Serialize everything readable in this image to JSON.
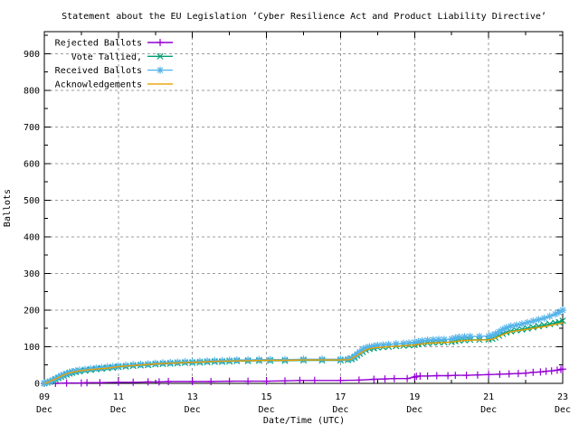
{
  "chart_data": {
    "type": "line",
    "title": "Statement about the EU Legislation ’Cyber Resilience Act and Product Liability Directive’",
    "xlabel": "Date/Time (UTC)",
    "ylabel": "Ballots",
    "xlim": [
      9,
      23
    ],
    "ylim": [
      0,
      960
    ],
    "grid": true,
    "grid_color": "#9c9c9c",
    "axis_color": "#000000",
    "legend_position": "top-left-inside",
    "yticks_major": [
      0,
      100,
      200,
      300,
      400,
      500,
      600,
      700,
      800,
      900
    ],
    "yticks_minor_step": 50,
    "xticks": [
      {
        "value": 9,
        "label_day": "09",
        "label_month": "Dec"
      },
      {
        "value": 11,
        "label_day": "11",
        "label_month": "Dec"
      },
      {
        "value": 13,
        "label_day": "13",
        "label_month": "Dec"
      },
      {
        "value": 15,
        "label_day": "15",
        "label_month": "Dec"
      },
      {
        "value": 17,
        "label_day": "17",
        "label_month": "Dec"
      },
      {
        "value": 19,
        "label_day": "19",
        "label_month": "Dec"
      },
      {
        "value": 21,
        "label_day": "21",
        "label_month": "Dec"
      },
      {
        "value": 23,
        "label_day": "23",
        "label_month": "Dec"
      }
    ],
    "xticks_minor": [
      10,
      12,
      14,
      16,
      18,
      20,
      22
    ],
    "series": [
      {
        "name": "Rejected Ballots",
        "color": "#9400d3",
        "marker": "plus",
        "points": [
          [
            9.0,
            0
          ],
          [
            9.3,
            0
          ],
          [
            9.6,
            1
          ],
          [
            10.0,
            1
          ],
          [
            10.15,
            2
          ],
          [
            10.5,
            2
          ],
          [
            11.0,
            3
          ],
          [
            11.4,
            3
          ],
          [
            11.8,
            4
          ],
          [
            12.1,
            4
          ],
          [
            12.35,
            5
          ],
          [
            13.0,
            5
          ],
          [
            13.5,
            5
          ],
          [
            14.0,
            6
          ],
          [
            14.5,
            6
          ],
          [
            15.0,
            6
          ],
          [
            15.5,
            7
          ],
          [
            15.9,
            8
          ],
          [
            16.3,
            8
          ],
          [
            17.0,
            8
          ],
          [
            17.5,
            9
          ],
          [
            17.9,
            11
          ],
          [
            18.2,
            12
          ],
          [
            18.45,
            13
          ],
          [
            18.8,
            13
          ],
          [
            19.0,
            17
          ],
          [
            19.05,
            19
          ],
          [
            19.15,
            20
          ],
          [
            19.35,
            20
          ],
          [
            19.6,
            21
          ],
          [
            19.9,
            21
          ],
          [
            20.1,
            22
          ],
          [
            20.4,
            22
          ],
          [
            20.7,
            23
          ],
          [
            21.0,
            24
          ],
          [
            21.3,
            25
          ],
          [
            21.55,
            26
          ],
          [
            21.8,
            27
          ],
          [
            22.0,
            28
          ],
          [
            22.2,
            30
          ],
          [
            22.4,
            31
          ],
          [
            22.55,
            33
          ],
          [
            22.7,
            34
          ],
          [
            22.85,
            36
          ],
          [
            22.95,
            38
          ],
          [
            23.0,
            39
          ]
        ]
      },
      {
        "name": "Vote Tallied,",
        "color": "#009e73",
        "marker": "cross",
        "points": [
          [
            9.0,
            0
          ],
          [
            9.08,
            2
          ],
          [
            9.15,
            4
          ],
          [
            9.22,
            7
          ],
          [
            9.3,
            10
          ],
          [
            9.38,
            14
          ],
          [
            9.45,
            18
          ],
          [
            9.52,
            21
          ],
          [
            9.6,
            24
          ],
          [
            9.68,
            27
          ],
          [
            9.75,
            29
          ],
          [
            9.85,
            31
          ],
          [
            9.95,
            33
          ],
          [
            10.1,
            35
          ],
          [
            10.25,
            37
          ],
          [
            10.4,
            39
          ],
          [
            10.55,
            40
          ],
          [
            10.7,
            42
          ],
          [
            10.85,
            43
          ],
          [
            11.0,
            45
          ],
          [
            11.2,
            46
          ],
          [
            11.4,
            48
          ],
          [
            11.6,
            49
          ],
          [
            11.8,
            50
          ],
          [
            12.0,
            52
          ],
          [
            12.2,
            53
          ],
          [
            12.4,
            54
          ],
          [
            12.6,
            55
          ],
          [
            12.8,
            56
          ],
          [
            13.0,
            56
          ],
          [
            13.2,
            57
          ],
          [
            13.4,
            58
          ],
          [
            13.6,
            59
          ],
          [
            13.8,
            59
          ],
          [
            14.0,
            60
          ],
          [
            14.2,
            61
          ],
          [
            14.5,
            61
          ],
          [
            14.8,
            62
          ],
          [
            15.1,
            62
          ],
          [
            15.5,
            62
          ],
          [
            16.0,
            63
          ],
          [
            16.5,
            63
          ],
          [
            17.0,
            63
          ],
          [
            17.2,
            64
          ],
          [
            17.3,
            66
          ],
          [
            17.38,
            70
          ],
          [
            17.45,
            76
          ],
          [
            17.52,
            81
          ],
          [
            17.6,
            86
          ],
          [
            17.68,
            91
          ],
          [
            17.78,
            94
          ],
          [
            17.9,
            96
          ],
          [
            18.0,
            98
          ],
          [
            18.15,
            99
          ],
          [
            18.3,
            100
          ],
          [
            18.5,
            102
          ],
          [
            18.7,
            103
          ],
          [
            18.85,
            104
          ],
          [
            19.0,
            105
          ],
          [
            19.1,
            107
          ],
          [
            19.2,
            109
          ],
          [
            19.35,
            110
          ],
          [
            19.5,
            111
          ],
          [
            19.65,
            112
          ],
          [
            19.8,
            112
          ],
          [
            20.0,
            113
          ],
          [
            20.1,
            115
          ],
          [
            20.2,
            117
          ],
          [
            20.35,
            118
          ],
          [
            20.5,
            119
          ],
          [
            20.75,
            119
          ],
          [
            21.0,
            120
          ],
          [
            21.1,
            122
          ],
          [
            21.18,
            125
          ],
          [
            21.28,
            130
          ],
          [
            21.38,
            135
          ],
          [
            21.48,
            139
          ],
          [
            21.6,
            142
          ],
          [
            21.75,
            145
          ],
          [
            21.9,
            147
          ],
          [
            22.05,
            150
          ],
          [
            22.2,
            153
          ],
          [
            22.35,
            156
          ],
          [
            22.5,
            159
          ],
          [
            22.65,
            162
          ],
          [
            22.8,
            165
          ],
          [
            22.9,
            167
          ],
          [
            23.0,
            171
          ]
        ]
      },
      {
        "name": "Received Ballots",
        "color": "#56b4e9",
        "marker": "asterisk",
        "points": [
          [
            9.0,
            1
          ],
          [
            9.08,
            3
          ],
          [
            9.15,
            6
          ],
          [
            9.22,
            9
          ],
          [
            9.3,
            13
          ],
          [
            9.38,
            17
          ],
          [
            9.45,
            21
          ],
          [
            9.52,
            24
          ],
          [
            9.6,
            27
          ],
          [
            9.68,
            30
          ],
          [
            9.75,
            32
          ],
          [
            9.85,
            34
          ],
          [
            9.95,
            36
          ],
          [
            10.1,
            38
          ],
          [
            10.25,
            40
          ],
          [
            10.4,
            42
          ],
          [
            10.55,
            43
          ],
          [
            10.7,
            45
          ],
          [
            10.85,
            46
          ],
          [
            11.0,
            48
          ],
          [
            11.2,
            49
          ],
          [
            11.4,
            51
          ],
          [
            11.6,
            52
          ],
          [
            11.8,
            53
          ],
          [
            12.0,
            55
          ],
          [
            12.2,
            56
          ],
          [
            12.4,
            57
          ],
          [
            12.6,
            58
          ],
          [
            12.8,
            59
          ],
          [
            13.0,
            59
          ],
          [
            13.2,
            60
          ],
          [
            13.4,
            61
          ],
          [
            13.6,
            62
          ],
          [
            13.8,
            62
          ],
          [
            14.0,
            63
          ],
          [
            14.2,
            64
          ],
          [
            14.5,
            64
          ],
          [
            14.8,
            65
          ],
          [
            15.1,
            65
          ],
          [
            15.5,
            65
          ],
          [
            16.0,
            66
          ],
          [
            16.5,
            66
          ],
          [
            17.0,
            66
          ],
          [
            17.2,
            67
          ],
          [
            17.3,
            69
          ],
          [
            17.38,
            74
          ],
          [
            17.45,
            80
          ],
          [
            17.52,
            86
          ],
          [
            17.6,
            92
          ],
          [
            17.68,
            97
          ],
          [
            17.78,
            100
          ],
          [
            17.9,
            102
          ],
          [
            18.0,
            104
          ],
          [
            18.15,
            105
          ],
          [
            18.3,
            106
          ],
          [
            18.5,
            108
          ],
          [
            18.7,
            109
          ],
          [
            18.85,
            110
          ],
          [
            19.0,
            112
          ],
          [
            19.1,
            114
          ],
          [
            19.2,
            116
          ],
          [
            19.35,
            118
          ],
          [
            19.5,
            119
          ],
          [
            19.65,
            120
          ],
          [
            19.8,
            120
          ],
          [
            20.0,
            121
          ],
          [
            20.1,
            124
          ],
          [
            20.2,
            126
          ],
          [
            20.35,
            127
          ],
          [
            20.5,
            128
          ],
          [
            20.75,
            128
          ],
          [
            21.0,
            129
          ],
          [
            21.1,
            131
          ],
          [
            21.18,
            135
          ],
          [
            21.28,
            141
          ],
          [
            21.38,
            147
          ],
          [
            21.48,
            152
          ],
          [
            21.6,
            156
          ],
          [
            21.75,
            159
          ],
          [
            21.9,
            162
          ],
          [
            22.05,
            166
          ],
          [
            22.2,
            170
          ],
          [
            22.35,
            174
          ],
          [
            22.5,
            178
          ],
          [
            22.65,
            183
          ],
          [
            22.8,
            189
          ],
          [
            22.9,
            194
          ],
          [
            23.0,
            200
          ]
        ]
      },
      {
        "name": "Acknowledgements",
        "color": "#e69f00",
        "marker": "none",
        "points": [
          [
            9.0,
            0
          ],
          [
            9.1,
            3
          ],
          [
            9.2,
            8
          ],
          [
            9.3,
            12
          ],
          [
            9.4,
            17
          ],
          [
            9.5,
            22
          ],
          [
            9.6,
            26
          ],
          [
            9.7,
            29
          ],
          [
            9.8,
            31
          ],
          [
            9.95,
            34
          ],
          [
            10.1,
            36
          ],
          [
            10.3,
            38
          ],
          [
            10.5,
            40
          ],
          [
            10.75,
            42
          ],
          [
            11.0,
            46
          ],
          [
            11.3,
            48
          ],
          [
            11.6,
            50
          ],
          [
            12.0,
            53
          ],
          [
            12.4,
            55
          ],
          [
            12.8,
            57
          ],
          [
            13.2,
            58
          ],
          [
            13.6,
            60
          ],
          [
            14.0,
            61
          ],
          [
            14.5,
            62
          ],
          [
            15.0,
            63
          ],
          [
            15.5,
            63
          ],
          [
            16.0,
            64
          ],
          [
            16.5,
            64
          ],
          [
            17.0,
            64
          ],
          [
            17.25,
            65
          ],
          [
            17.4,
            73
          ],
          [
            17.55,
            83
          ],
          [
            17.7,
            92
          ],
          [
            17.85,
            96
          ],
          [
            18.0,
            98
          ],
          [
            18.3,
            100
          ],
          [
            18.6,
            102
          ],
          [
            19.0,
            105
          ],
          [
            19.3,
            109
          ],
          [
            19.6,
            111
          ],
          [
            19.9,
            112
          ],
          [
            20.1,
            114
          ],
          [
            20.3,
            117
          ],
          [
            20.6,
            118
          ],
          [
            21.0,
            119
          ],
          [
            21.15,
            122
          ],
          [
            21.3,
            129
          ],
          [
            21.45,
            136
          ],
          [
            21.6,
            141
          ],
          [
            21.8,
            144
          ],
          [
            22.0,
            147
          ],
          [
            22.3,
            152
          ],
          [
            22.6,
            157
          ],
          [
            22.9,
            163
          ],
          [
            23.0,
            166
          ]
        ]
      }
    ]
  }
}
